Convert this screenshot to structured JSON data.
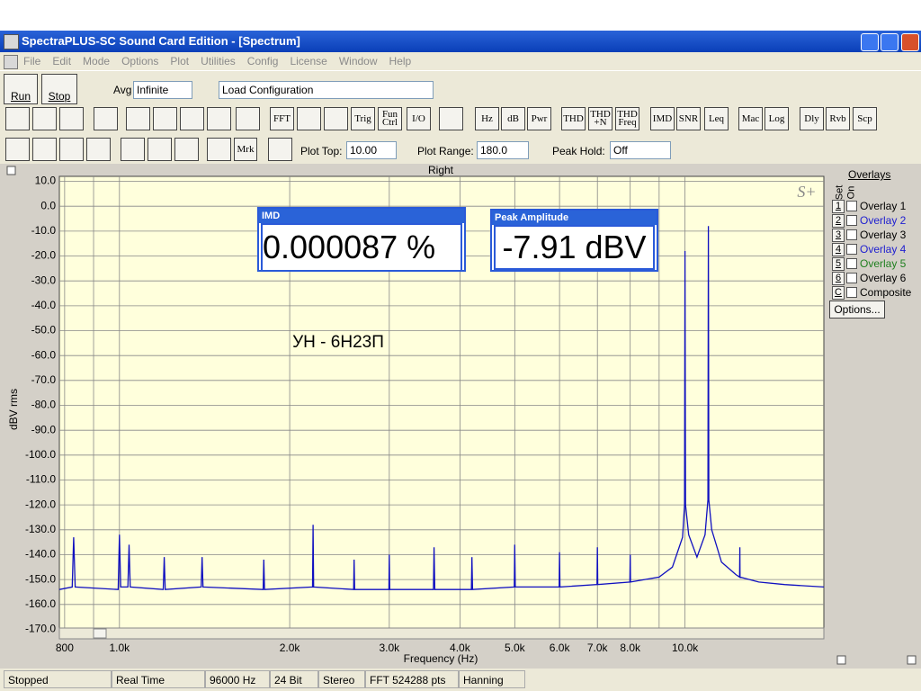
{
  "window": {
    "title": "SpectraPLUS-SC Sound Card Edition - [Spectrum]"
  },
  "menu": [
    "File",
    "Edit",
    "Mode",
    "Options",
    "Plot",
    "Utilities",
    "Config",
    "License",
    "Window",
    "Help"
  ],
  "toolbar1": {
    "run": "Run",
    "stop": "Stop",
    "avg_label": "Avg",
    "avg_value": "Infinite",
    "config": "Load Configuration"
  },
  "toolbar2": [
    "FFT",
    "Trig",
    "Fun\nCtrl",
    "I/O",
    "Hz",
    "dB",
    "Pwr",
    "THD",
    "THD\n+N",
    "THD\nFreq",
    "IMD",
    "SNR",
    "Leq",
    "Mac",
    "Log",
    "Dly",
    "Rvb",
    "Scp"
  ],
  "toolbar3": {
    "mrk": "Mrk",
    "plot_top_label": "Plot Top:",
    "plot_top": "10.00",
    "plot_range_label": "Plot Range:",
    "plot_range": "180.0",
    "peak_hold_label": "Peak Hold:",
    "peak_hold": "Off"
  },
  "imd_box": {
    "title": "IMD",
    "value": "0.000087 %"
  },
  "peak_box": {
    "title": "Peak Amplitude",
    "value": "-7.91 dBV"
  },
  "overlays": {
    "title": "Overlays",
    "set": "Set",
    "on": "On",
    "options": "Options...",
    "items": [
      {
        "key": "1",
        "name": "Overlay 1",
        "color": "#000000"
      },
      {
        "key": "2",
        "name": "Overlay 2",
        "color": "#2020d0"
      },
      {
        "key": "3",
        "name": "Overlay 3",
        "color": "#000000"
      },
      {
        "key": "4",
        "name": "Overlay 4",
        "color": "#2020d0"
      },
      {
        "key": "5",
        "name": "Overlay 5",
        "color": "#208020"
      },
      {
        "key": "6",
        "name": "Overlay 6",
        "color": "#000000"
      },
      {
        "key": "C",
        "name": "Composite",
        "color": "#000000"
      }
    ]
  },
  "status": [
    "Stopped",
    "Real Time",
    "96000 Hz",
    "24 Bit",
    "Stereo",
    "FFT 524288 pts",
    "Hanning"
  ],
  "chart_data": {
    "type": "line",
    "title": "Right",
    "x_label": "Frequency (Hz)",
    "y_label": "dBV rms",
    "annotation": "УН - 6Н23П",
    "logo": "S+",
    "log_x": true,
    "grid": true,
    "color": "#1010c0",
    "xlim": [
      783,
      17600
    ],
    "ylim": [
      -172,
      12
    ],
    "xticks": [
      800,
      {
        "value": 1000,
        "label": "1.0k"
      },
      {
        "value": 2000,
        "label": "2.0k"
      },
      {
        "value": 3000,
        "label": "3.0k"
      },
      {
        "value": 4000,
        "label": "4.0k"
      },
      {
        "value": 5000,
        "label": "5.0k"
      },
      {
        "value": 6000,
        "label": "6.0k"
      },
      {
        "value": 7000,
        "label": "7.0k"
      },
      {
        "value": 8000,
        "label": "8.0k"
      },
      {
        "value": 10000,
        "label": "10.0k"
      }
    ],
    "x_minor_ticks": [
      900,
      9000
    ],
    "yticks": [
      {
        "value": 10,
        "label": "10.0"
      },
      {
        "value": 0,
        "label": "0.0"
      },
      {
        "value": -10,
        "label": "-10.0"
      },
      {
        "value": -20,
        "label": "-20.0"
      },
      {
        "value": -30,
        "label": "-30.0"
      },
      {
        "value": -40,
        "label": "-40.0"
      },
      {
        "value": -50,
        "label": "-50.0"
      },
      {
        "value": -60,
        "label": "-60.0"
      },
      {
        "value": -70,
        "label": "-70.0"
      },
      {
        "value": -80,
        "label": "-80.0"
      },
      {
        "value": -90,
        "label": "-90.0"
      },
      {
        "value": -100,
        "label": "-100.0"
      },
      {
        "value": -110,
        "label": "-110.0"
      },
      {
        "value": -120,
        "label": "-120.0"
      },
      {
        "value": -130,
        "label": "-130.0"
      },
      {
        "value": -140,
        "label": "-140.0"
      },
      {
        "value": -150,
        "label": "-150.0"
      },
      {
        "value": -160,
        "label": "-160.0"
      },
      {
        "value": -170,
        "label": "-170.0"
      }
    ],
    "x": [
      783,
      825,
      830,
      835,
      995,
      1000,
      1005,
      1035,
      1040,
      1045,
      1195,
      1200,
      1205,
      1395,
      1400,
      1405,
      1795,
      1800,
      1805,
      2195,
      2200,
      2205,
      2595,
      2600,
      2605,
      2995,
      3000,
      3005,
      3590,
      3600,
      3610,
      4190,
      4200,
      4210,
      4990,
      5000,
      5010,
      5990,
      6000,
      6010,
      6990,
      7000,
      7010,
      7990,
      8000,
      8010,
      9000,
      9500,
      9900,
      9980,
      10000,
      10020,
      10150,
      10500,
      10850,
      10980,
      11000,
      11020,
      11150,
      11600,
      12300,
      12490,
      12500,
      12510,
      13500,
      15000,
      17600
    ],
    "values": [
      -154,
      -153,
      -133,
      -153,
      -154,
      -132,
      -153,
      -153,
      -136,
      -153,
      -154,
      -141,
      -154,
      -153,
      -141,
      -153,
      -154,
      -142,
      -154,
      -153,
      -128,
      -153,
      -154,
      -142,
      -154,
      -154,
      -140,
      -154,
      -154,
      -137,
      -154,
      -154,
      -141,
      -154,
      -153,
      -136,
      -153,
      -153,
      -139,
      -153,
      -152,
      -137,
      -152,
      -151,
      -140,
      -151,
      -149,
      -145,
      -133,
      -120,
      -18,
      -120,
      -132,
      -141,
      -132,
      -118,
      -8,
      -118,
      -130,
      -143,
      -148,
      -149,
      -137,
      -149,
      -151,
      -152,
      -153
    ]
  }
}
